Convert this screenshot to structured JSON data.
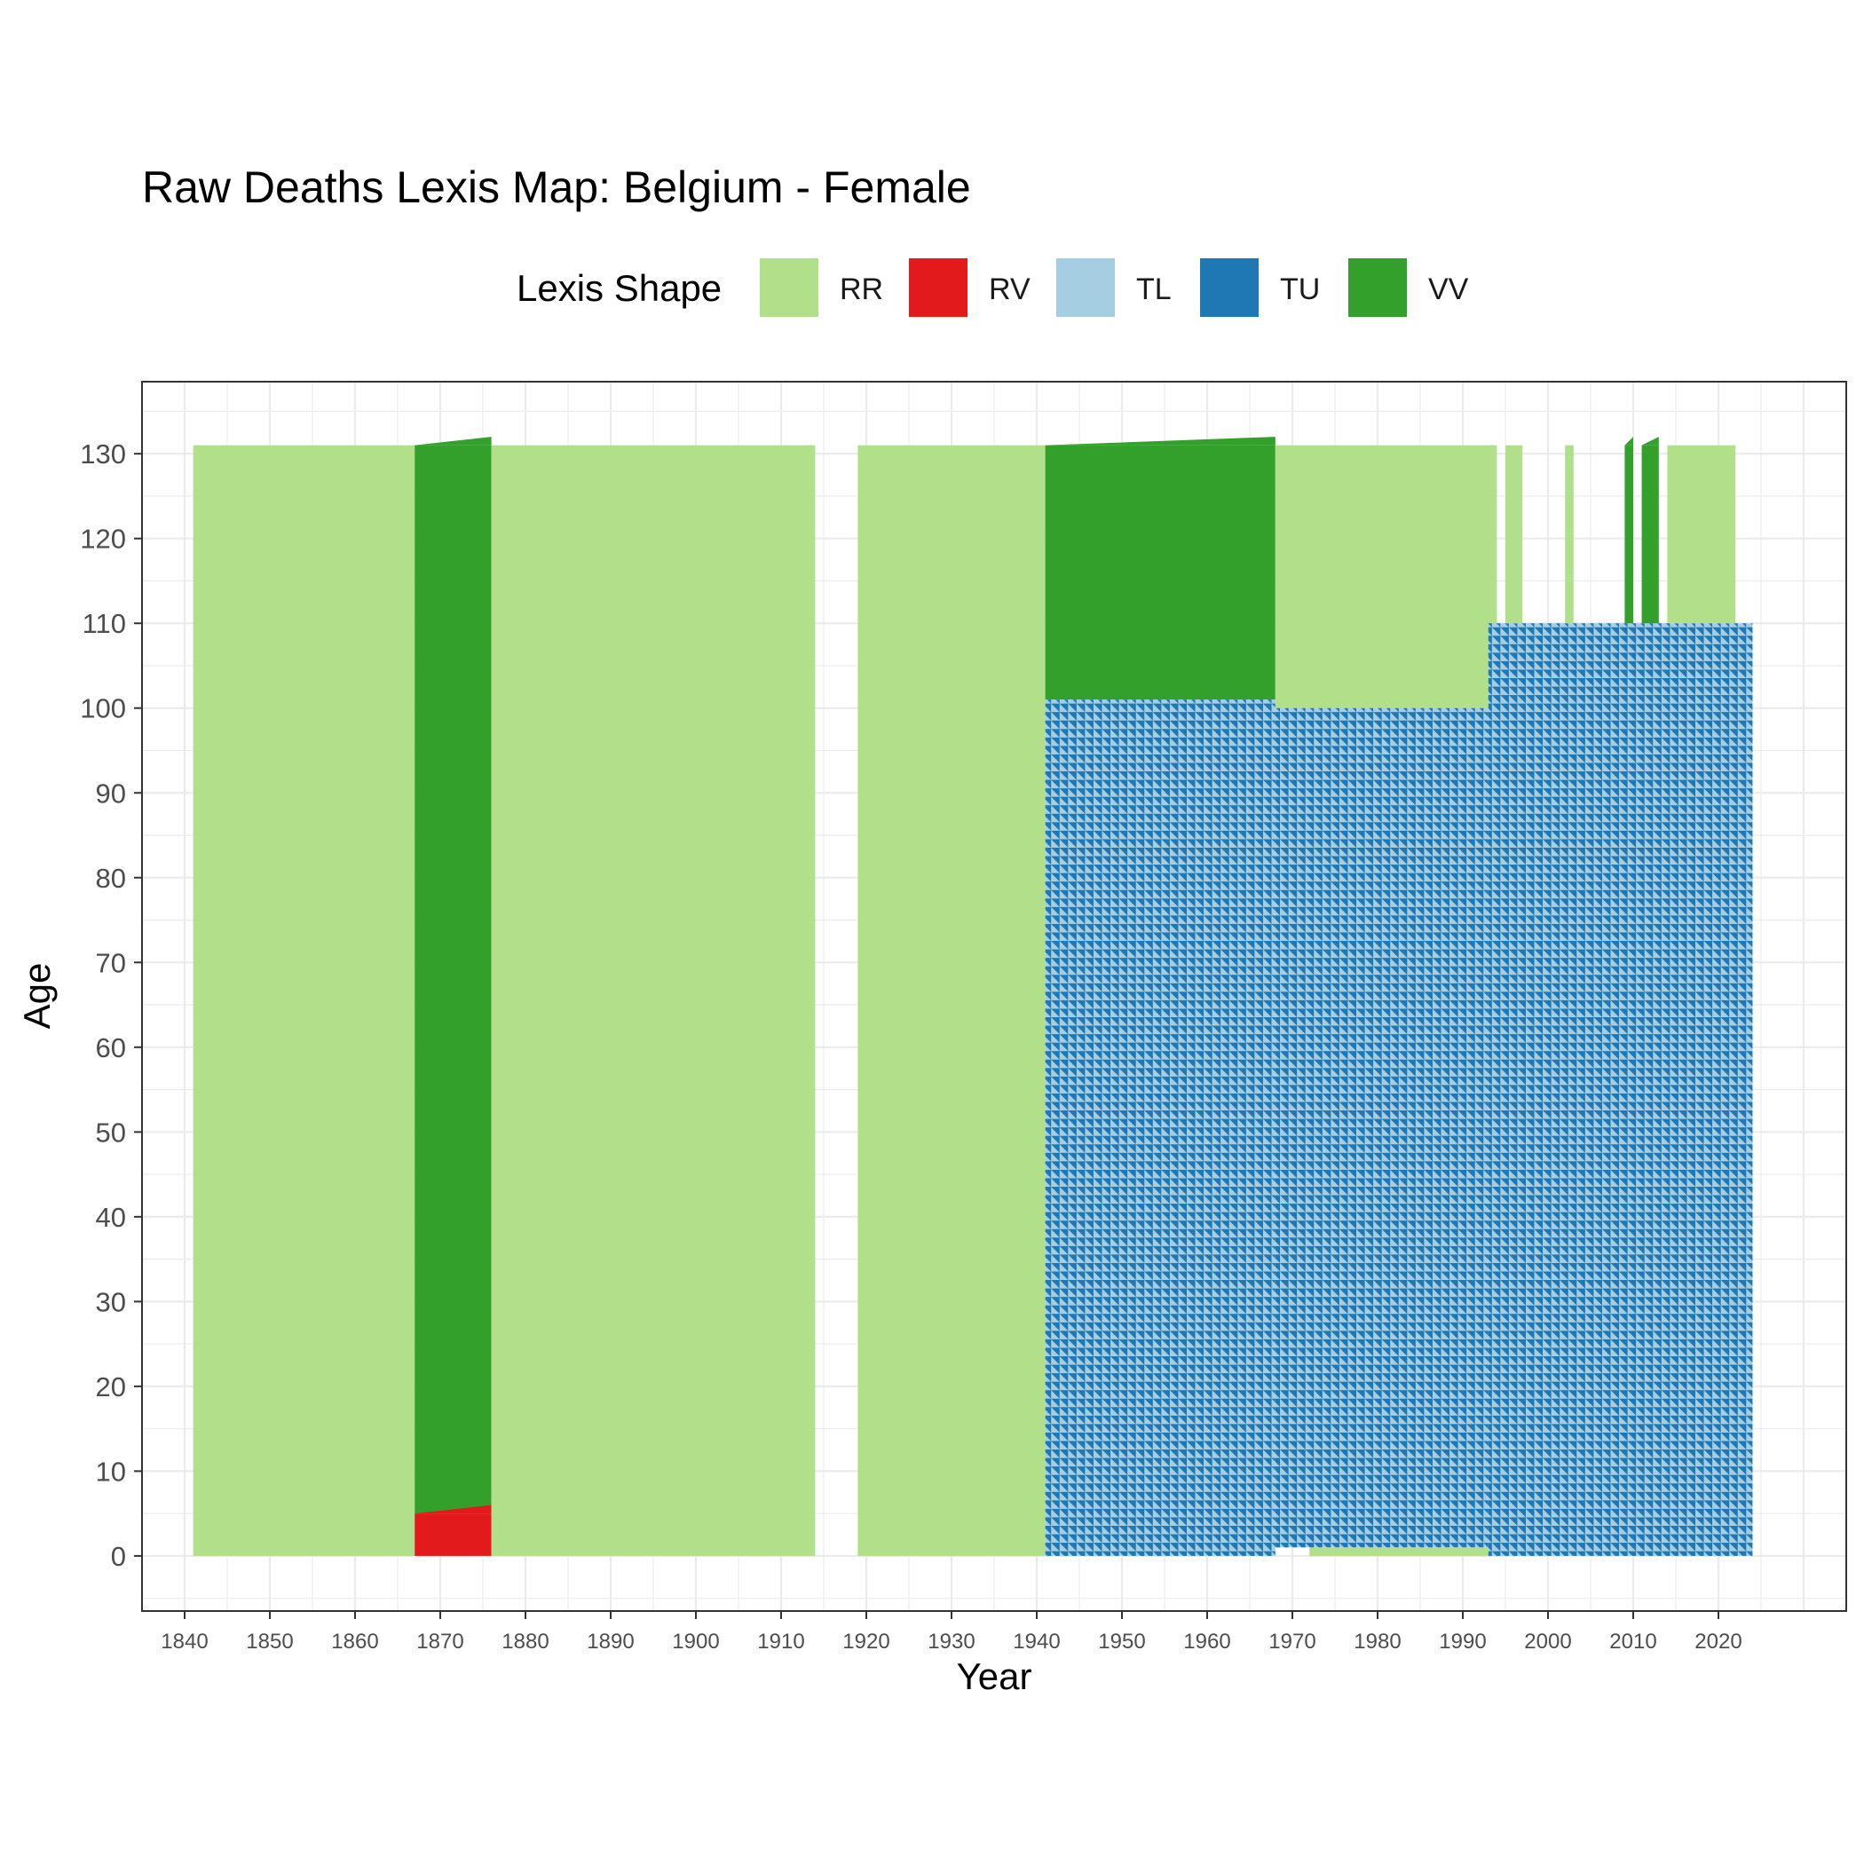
{
  "chart_data": {
    "type": "heatmap",
    "title": "Raw Deaths Lexis Map: Belgium - Female",
    "xlabel": "Year",
    "ylabel": "Age",
    "xlim": [
      1835,
      2035
    ],
    "ylim": [
      -6.5,
      138.5
    ],
    "x_ticks": [
      1840,
      1850,
      1860,
      1870,
      1880,
      1890,
      1900,
      1910,
      1920,
      1930,
      1940,
      1950,
      1960,
      1970,
      1980,
      1990,
      2000,
      2010,
      2020
    ],
    "y_ticks": [
      0,
      10,
      20,
      30,
      40,
      50,
      60,
      70,
      80,
      90,
      100,
      110,
      120,
      130
    ],
    "grid": true,
    "legend": {
      "title": "Lexis Shape",
      "position": "top",
      "entries": [
        {
          "label": "RR",
          "color": "#b2df8a"
        },
        {
          "label": "RV",
          "color": "#e31a1c"
        },
        {
          "label": "TL",
          "color": "#a6cee3"
        },
        {
          "label": "TU",
          "color": "#1f78b4"
        },
        {
          "label": "VV",
          "color": "#33a02c"
        }
      ]
    },
    "regions": [
      {
        "shape": "RR",
        "year_start": 1841,
        "year_end": 1867,
        "age_start": 0,
        "age_end": 131
      },
      {
        "shape": "VV",
        "year_start": 1867,
        "year_end": 1876,
        "age_start": 5,
        "age_end": 131
      },
      {
        "shape": "RV",
        "year_start": 1867,
        "year_end": 1876,
        "age_start": 0,
        "age_end": 5
      },
      {
        "shape": "RR",
        "year_start": 1876,
        "year_end": 1914,
        "age_start": 0,
        "age_end": 131
      },
      {
        "shape": "RR",
        "year_start": 1919,
        "year_end": 1941,
        "age_start": 0,
        "age_end": 131
      },
      {
        "shape": "VV",
        "year_start": 1941,
        "year_end": 1968,
        "age_start": 101,
        "age_end": 131
      },
      {
        "shape": "TL/TU",
        "year_start": 1941,
        "year_end": 1968,
        "age_start": 0,
        "age_end": 101
      },
      {
        "shape": "RR",
        "year_start": 1968,
        "year_end": 1994,
        "age_start": 100,
        "age_end": 131
      },
      {
        "shape": "TL/TU",
        "year_start": 1968,
        "year_end": 1993,
        "age_start": 1,
        "age_end": 100
      },
      {
        "shape": "RR",
        "year_start": 1972,
        "year_end": 1993,
        "age_start": 0,
        "age_end": 1
      },
      {
        "shape": "TL/TU",
        "year_start": 1993,
        "year_end": 2024,
        "age_start": 0,
        "age_end": 110
      },
      {
        "shape": "RR",
        "year_start": 1995,
        "year_end": 1997,
        "age_start": 110,
        "age_end": 131
      },
      {
        "shape": "RR",
        "year_start": 2002,
        "year_end": 2003,
        "age_start": 110,
        "age_end": 131
      },
      {
        "shape": "VV",
        "year_start": 2009,
        "year_end": 2010,
        "age_start": 110,
        "age_end": 131
      },
      {
        "shape": "VV",
        "year_start": 2011,
        "year_end": 2013,
        "age_start": 110,
        "age_end": 131
      },
      {
        "shape": "RR",
        "year_start": 2014,
        "year_end": 2022,
        "age_start": 110,
        "age_end": 131
      }
    ]
  }
}
